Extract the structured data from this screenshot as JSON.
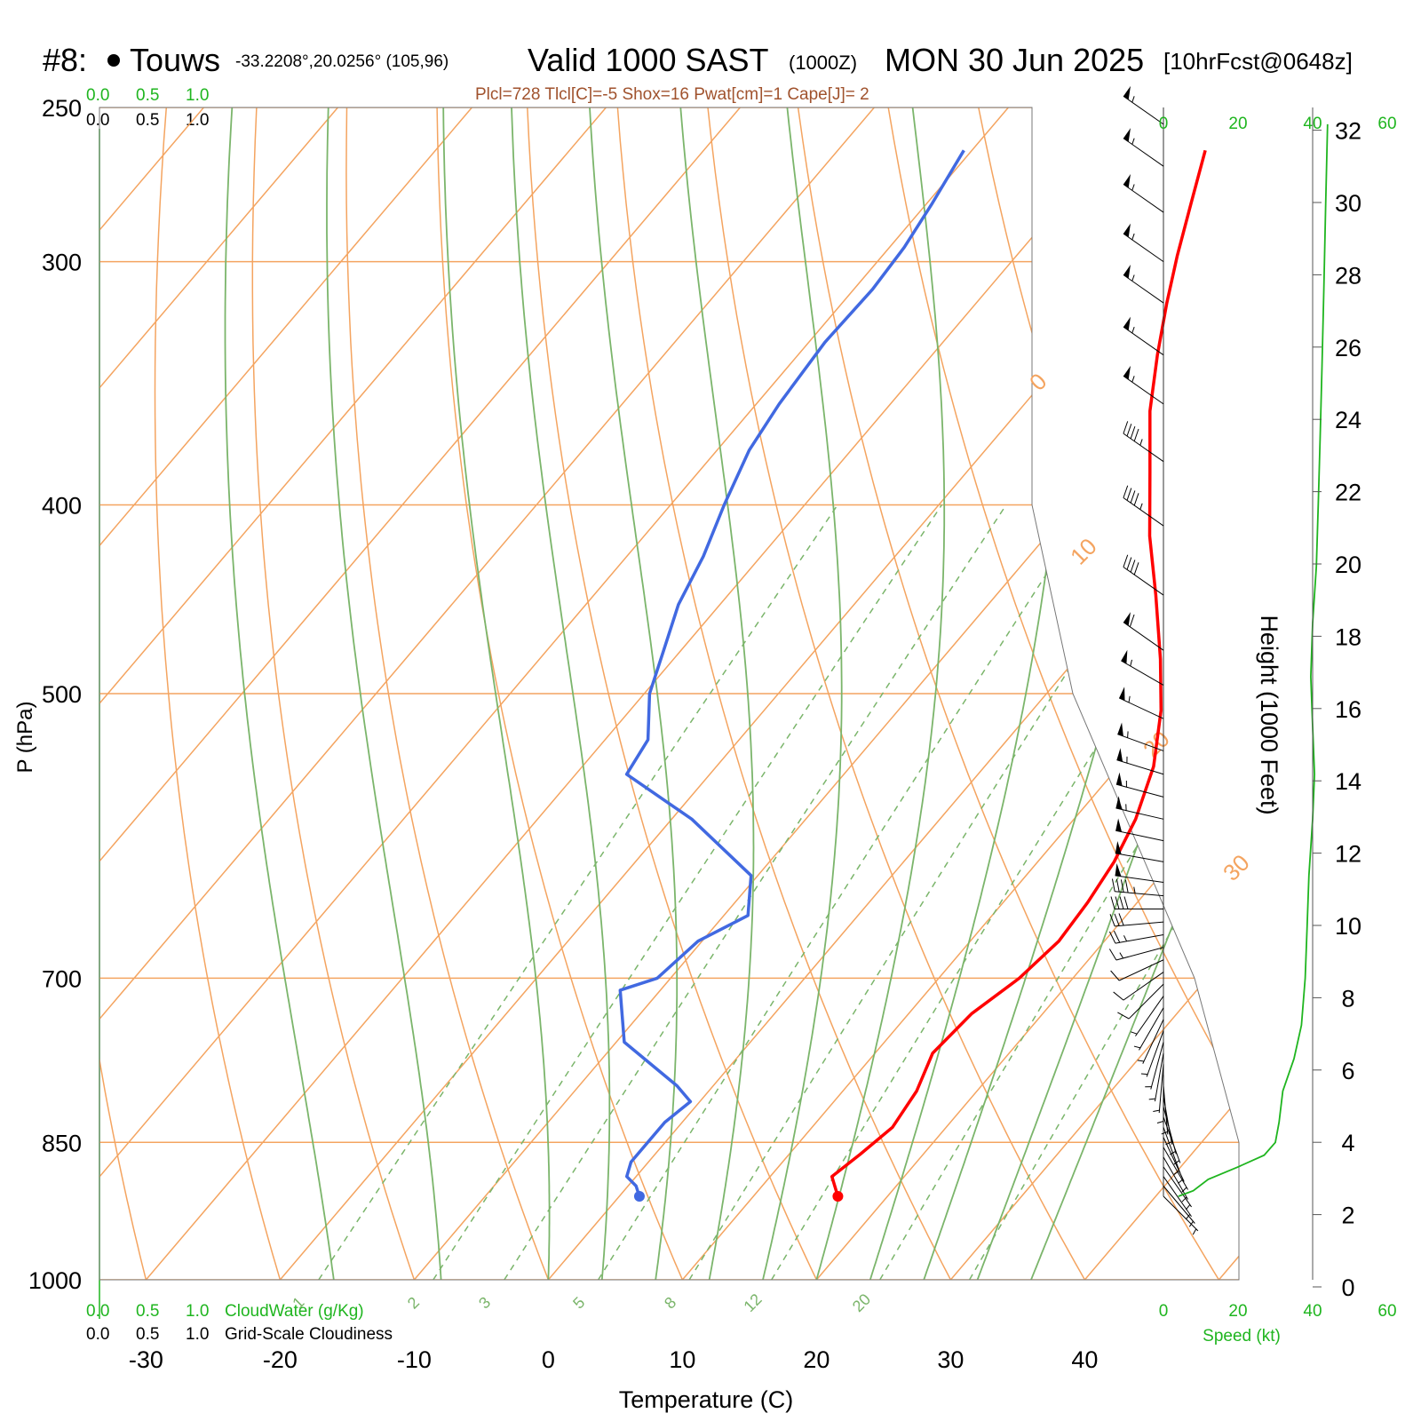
{
  "header": {
    "station_num": "#8:",
    "station_name": "Touws",
    "coords": "-33.2208°,20.0256° (105,96)",
    "valid": "Valid 1000 SAST",
    "valid_z": "(1000Z)",
    "date": "MON 30 Jun 2025",
    "forecast": "[10hrFcst@0648z]",
    "params": "Plcl=728 Tlcl[C]=-5 Shox=16 Pwat[cm]=1 Cape[J]= 2"
  },
  "scales": {
    "cloudwater_ticks": [
      "0.0",
      "0.5",
      "1.0"
    ],
    "cloudiness_ticks": [
      "0.0",
      "0.5",
      "1.0"
    ],
    "cloudwater_label": "CloudWater (g/Kg)",
    "cloudiness_label": "Grid-Scale Cloudiness",
    "speed_ticks": [
      "0",
      "20",
      "40",
      "60"
    ],
    "speed_label": "Speed (kt)"
  },
  "colors": {
    "temperature": "#ff0000",
    "dewpoint": "#4169e1",
    "isotherm": "#f4a460",
    "dry_adiabat": "#f4a460",
    "moist_adiabat": "#7bb56b",
    "mixing_ratio": "#7bb56b",
    "speed_profile": "#1fb51f"
  },
  "chart_data": {
    "type": "line",
    "xlabel": "Temperature (C)",
    "ylabel": "P (hPa)",
    "y2label": "Height (1000 Feet)",
    "xlim": [
      -30,
      40
    ],
    "ylim": [
      1000,
      250
    ],
    "x_ticks": [
      -30,
      -20,
      -10,
      0,
      10,
      20,
      30,
      40
    ],
    "pressure_ticks": [
      250,
      300,
      400,
      500,
      700,
      850,
      1000
    ],
    "height_ticks": [
      0,
      2,
      4,
      6,
      8,
      10,
      12,
      14,
      16,
      18,
      20,
      22,
      24,
      26,
      28,
      30,
      32
    ],
    "isotherm_labels": [
      "10",
      "0",
      "-10",
      "-20",
      "-30"
    ],
    "dry_adiabat_labels": [
      "0",
      "10",
      "20",
      "30"
    ],
    "mixing_ratio_labels": [
      "1",
      "2",
      "3",
      "5",
      "8",
      "12",
      "20"
    ],
    "series": [
      {
        "name": "Temperature",
        "points": [
          [
            16.3,
            906
          ],
          [
            14.6,
            885
          ],
          [
            15.3,
            862
          ],
          [
            16.0,
            835
          ],
          [
            15.5,
            800
          ],
          [
            14.3,
            765
          ],
          [
            14.7,
            730
          ],
          [
            16.0,
            700
          ],
          [
            16.6,
            670
          ],
          [
            16.3,
            640
          ],
          [
            15.7,
            610
          ],
          [
            14.6,
            580
          ],
          [
            12.6,
            545
          ],
          [
            9.6,
            510
          ],
          [
            6.3,
            480
          ],
          [
            1.9,
            445
          ],
          [
            -2.3,
            415
          ],
          [
            -6.3,
            385
          ],
          [
            -10.2,
            358
          ],
          [
            -13.2,
            335
          ],
          [
            -15.8,
            315
          ],
          [
            -18.0,
            298
          ],
          [
            -20.3,
            280
          ],
          [
            -22.6,
            263
          ]
        ]
      },
      {
        "name": "Dewpoint",
        "points": [
          [
            1.5,
            906
          ],
          [
            0.6,
            895
          ],
          [
            -0.7,
            885
          ],
          [
            -1.3,
            870
          ],
          [
            -1.3,
            830
          ],
          [
            -0.7,
            810
          ],
          [
            -2.7,
            795
          ],
          [
            -9.4,
            755
          ],
          [
            -13.0,
            710
          ],
          [
            -11.0,
            700
          ],
          [
            -10.3,
            670
          ],
          [
            -8.2,
            650
          ],
          [
            -10.5,
            620
          ],
          [
            -18.5,
            580
          ],
          [
            -26.2,
            550
          ],
          [
            -26.8,
            528
          ],
          [
            -29.6,
            500
          ],
          [
            -31.3,
            475
          ],
          [
            -33.1,
            450
          ],
          [
            -34.3,
            425
          ],
          [
            -36.0,
            400
          ],
          [
            -37.6,
            375
          ],
          [
            -38.3,
            355
          ],
          [
            -38.8,
            330
          ],
          [
            -38.6,
            310
          ],
          [
            -38.9,
            295
          ],
          [
            -39.6,
            280
          ],
          [
            -40.6,
            263
          ]
        ]
      }
    ],
    "surface": {
      "temperature": 16.3,
      "dewpoint": 1.5,
      "pressure": 906
    },
    "wind_barbs": [
      {
        "p": 906,
        "dir": 135,
        "spd": 5
      },
      {
        "p": 895,
        "dir": 140,
        "spd": 5
      },
      {
        "p": 885,
        "dir": 145,
        "spd": 5
      },
      {
        "p": 875,
        "dir": 145,
        "spd": 5
      },
      {
        "p": 865,
        "dir": 150,
        "spd": 5
      },
      {
        "p": 855,
        "dir": 150,
        "spd": 5
      },
      {
        "p": 845,
        "dir": 155,
        "spd": 5
      },
      {
        "p": 835,
        "dir": 160,
        "spd": 5
      },
      {
        "p": 825,
        "dir": 160,
        "spd": 5
      },
      {
        "p": 815,
        "dir": 165,
        "spd": 5
      },
      {
        "p": 805,
        "dir": 170,
        "spd": 5
      },
      {
        "p": 795,
        "dir": 175,
        "spd": 5
      },
      {
        "p": 785,
        "dir": 180,
        "spd": 5
      },
      {
        "p": 775,
        "dir": 185,
        "spd": 5
      },
      {
        "p": 765,
        "dir": 190,
        "spd": 5
      },
      {
        "p": 755,
        "dir": 195,
        "spd": 5
      },
      {
        "p": 745,
        "dir": 200,
        "spd": 5
      },
      {
        "p": 735,
        "dir": 205,
        "spd": 5
      },
      {
        "p": 725,
        "dir": 210,
        "spd": 5
      },
      {
        "p": 715,
        "dir": 215,
        "spd": 5
      },
      {
        "p": 705,
        "dir": 225,
        "spd": 10
      },
      {
        "p": 695,
        "dir": 235,
        "spd": 10
      },
      {
        "p": 685,
        "dir": 245,
        "spd": 10
      },
      {
        "p": 675,
        "dir": 255,
        "spd": 15
      },
      {
        "p": 665,
        "dir": 260,
        "spd": 25
      },
      {
        "p": 655,
        "dir": 265,
        "spd": 30
      },
      {
        "p": 645,
        "dir": 270,
        "spd": 40
      },
      {
        "p": 635,
        "dir": 275,
        "spd": 45
      },
      {
        "p": 625,
        "dir": 278,
        "spd": 50
      },
      {
        "p": 610,
        "dir": 280,
        "spd": 50
      },
      {
        "p": 595,
        "dir": 282,
        "spd": 50
      },
      {
        "p": 580,
        "dir": 283,
        "spd": 55
      },
      {
        "p": 565,
        "dir": 285,
        "spd": 55
      },
      {
        "p": 550,
        "dir": 287,
        "spd": 55
      },
      {
        "p": 535,
        "dir": 290,
        "spd": 55
      },
      {
        "p": 515,
        "dir": 295,
        "spd": 55
      },
      {
        "p": 495,
        "dir": 300,
        "spd": 55
      },
      {
        "p": 475,
        "dir": 305,
        "spd": 60
      },
      {
        "p": 445,
        "dir": 305,
        "spd": 40
      },
      {
        "p": 410,
        "dir": 305,
        "spd": 45
      },
      {
        "p": 380,
        "dir": 305,
        "spd": 45
      },
      {
        "p": 355,
        "dir": 305,
        "spd": 55
      },
      {
        "p": 335,
        "dir": 305,
        "spd": 55
      },
      {
        "p": 315,
        "dir": 305,
        "spd": 55
      },
      {
        "p": 300,
        "dir": 305,
        "spd": 55
      },
      {
        "p": 283,
        "dir": 305,
        "spd": 55
      },
      {
        "p": 268,
        "dir": 305,
        "spd": 55
      },
      {
        "p": 255,
        "dir": 305,
        "spd": 55
      }
    ],
    "speed_profile": [
      [
        4,
        906
      ],
      [
        8,
        900
      ],
      [
        12,
        888
      ],
      [
        20,
        875
      ],
      [
        27,
        863
      ],
      [
        30,
        850
      ],
      [
        31,
        830
      ],
      [
        32,
        800
      ],
      [
        35,
        770
      ],
      [
        37,
        740
      ],
      [
        38,
        700
      ],
      [
        38.5,
        660
      ],
      [
        39,
        620
      ],
      [
        40,
        580
      ],
      [
        40.5,
        550
      ],
      [
        40,
        520
      ],
      [
        39.5,
        490
      ],
      [
        40,
        460
      ],
      [
        41,
        430
      ],
      [
        41.5,
        400
      ],
      [
        42,
        370
      ],
      [
        42.5,
        340
      ],
      [
        43,
        310
      ],
      [
        43.5,
        280
      ],
      [
        44,
        255
      ]
    ]
  }
}
